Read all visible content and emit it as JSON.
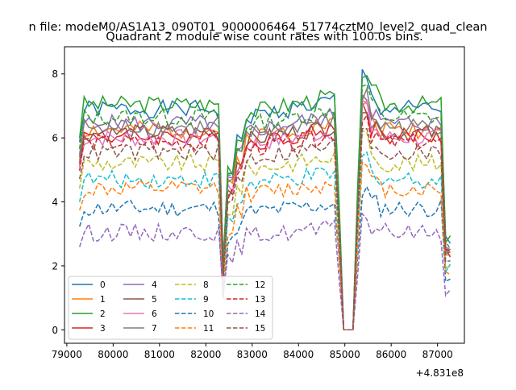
{
  "header": {
    "suptitle": "n file: modeM0/AS1A13_090T01_9000006464_51774cztM0_level2_quad_clean",
    "title": "Quadrant 2 module wise count rates with 100.0s bins."
  },
  "chart_data": {
    "type": "line",
    "title": "Quadrant 2 module wise count rates with 100.0s bins.",
    "xlabel": "",
    "ylabel": "",
    "offset_label": "+4.831e8",
    "xlim": [
      78950,
      87580
    ],
    "ylim": [
      -0.42,
      8.85
    ],
    "xticks": [
      79000,
      80000,
      81000,
      82000,
      83000,
      84000,
      85000,
      86000,
      87000
    ],
    "xtick_labels": [
      "79000",
      "80000",
      "81000",
      "82000",
      "83000",
      "84000",
      "85000",
      "86000",
      "87000"
    ],
    "yticks": [
      0,
      2,
      4,
      6,
      8
    ],
    "ytick_labels": [
      "0",
      "2",
      "4",
      "6",
      "8"
    ],
    "grid": false,
    "legend_position": "lower-left",
    "legend_columns": 4,
    "x_range": [
      79275,
      87275
    ],
    "x_step": 100,
    "series": [
      {
        "name": "0",
        "color": "#1f77b4",
        "dash": "solid",
        "level": 6.9,
        "seed": 1
      },
      {
        "name": "1",
        "color": "#ff7f0e",
        "dash": "solid",
        "level": 6.25,
        "seed": 2
      },
      {
        "name": "2",
        "color": "#2ca02c",
        "dash": "solid",
        "level": 7.05,
        "seed": 3
      },
      {
        "name": "3",
        "color": "#d62728",
        "dash": "solid",
        "level": 6.05,
        "seed": 4
      },
      {
        "name": "4",
        "color": "#9467bd",
        "dash": "solid",
        "level": 6.45,
        "seed": 5
      },
      {
        "name": "5",
        "color": "#8c564b",
        "dash": "solid",
        "level": 6.15,
        "seed": 6
      },
      {
        "name": "6",
        "color": "#e377c2",
        "dash": "solid",
        "level": 6.0,
        "seed": 7
      },
      {
        "name": "7",
        "color": "#7f7f7f",
        "dash": "solid",
        "level": 6.35,
        "seed": 8
      },
      {
        "name": "8",
        "color": "#bcbd22",
        "dash": "dashed",
        "level": 5.2,
        "seed": 9
      },
      {
        "name": "9",
        "color": "#17becf",
        "dash": "dashed",
        "level": 4.7,
        "seed": 10
      },
      {
        "name": "10",
        "color": "#1f77b4",
        "dash": "dashed",
        "level": 3.8,
        "seed": 11
      },
      {
        "name": "11",
        "color": "#ff7f0e",
        "dash": "dashed",
        "level": 4.4,
        "seed": 12
      },
      {
        "name": "12",
        "color": "#2ca02c",
        "dash": "dashed",
        "level": 6.65,
        "seed": 13
      },
      {
        "name": "13",
        "color": "#d62728",
        "dash": "dashed",
        "level": 5.85,
        "seed": 14
      },
      {
        "name": "14",
        "color": "#9467bd",
        "dash": "dashed",
        "level": 3.05,
        "seed": 15
      },
      {
        "name": "15",
        "color": "#8c564b",
        "dash": "dashed",
        "level": 5.55,
        "seed": 16
      }
    ]
  }
}
